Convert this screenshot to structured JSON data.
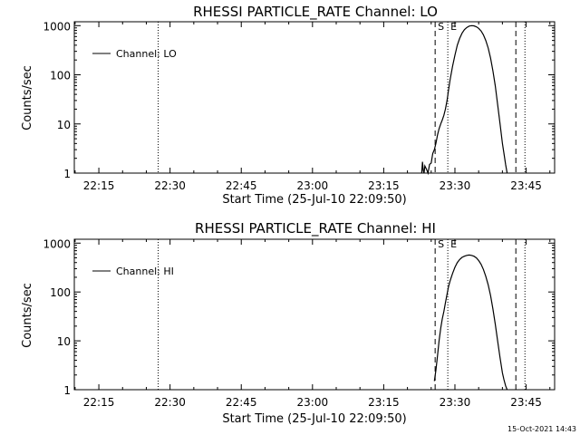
{
  "footer": {
    "timestamp": "15-Oct-2021 14:43"
  },
  "chart_data": [
    {
      "type": "line",
      "title": "RHESSI PARTICLE_RATE Channel: LO",
      "xlabel": "Start Time (25-Jul-10 22:09:50)",
      "ylabel": "Counts/sec",
      "y_scale": "log",
      "ylim": [
        1,
        1200
      ],
      "xlim": [
        "22:09:50",
        "23:51:00"
      ],
      "x_ticks": [
        "22:15",
        "22:30",
        "22:45",
        "23:00",
        "23:15",
        "23:30",
        "23:45"
      ],
      "y_ticks": [
        "1",
        "10",
        "100",
        "1000"
      ],
      "legend": {
        "position": "top-left",
        "entries": [
          "Channel: LO"
        ]
      },
      "markers": [
        {
          "label": "",
          "time": "22:27:30",
          "style": "dotted"
        },
        {
          "label": "S",
          "time": "23:25:50",
          "style": "dashed"
        },
        {
          "label": "E",
          "time": "23:28:30",
          "style": "dotted"
        },
        {
          "label": "",
          "time": "23:42:50",
          "style": "dashed"
        },
        {
          "label": "",
          "time": "23:44:45",
          "style": "dotted"
        }
      ],
      "series": [
        {
          "name": "Channel: LO",
          "x": [
            "23:23:00",
            "23:23:10",
            "23:23:20",
            "23:23:30",
            "23:23:40",
            "23:24:00",
            "23:24:20",
            "23:24:40",
            "23:25:00",
            "23:25:20",
            "23:25:40",
            "23:26:00",
            "23:26:20",
            "23:26:40",
            "23:27:00",
            "23:27:20",
            "23:27:40",
            "23:28:00",
            "23:28:20",
            "23:28:40",
            "23:29:00",
            "23:29:30",
            "23:30:00",
            "23:30:30",
            "23:31:00",
            "23:31:30",
            "23:32:00",
            "23:32:30",
            "23:33:00",
            "23:33:30",
            "23:34:00",
            "23:34:30",
            "23:35:00",
            "23:35:30",
            "23:36:00",
            "23:36:30",
            "23:37:00",
            "23:37:30",
            "23:38:00",
            "23:38:30",
            "23:39:00",
            "23:39:30",
            "23:40:00",
            "23:40:20",
            "23:40:40",
            "23:41:00"
          ],
          "values": [
            1.0,
            1.7,
            1.1,
            1.0,
            1.4,
            1.2,
            1.0,
            1.5,
            1.6,
            2.5,
            3.0,
            4.0,
            6.0,
            8.0,
            10,
            12,
            15,
            20,
            30,
            50,
            80,
            150,
            250,
            400,
            550,
            700,
            830,
            920,
            980,
            1000,
            990,
            950,
            880,
            780,
            650,
            500,
            350,
            220,
            120,
            60,
            25,
            10,
            4.0,
            2.5,
            1.5,
            1.0
          ]
        }
      ]
    },
    {
      "type": "line",
      "title": "RHESSI PARTICLE_RATE Channel: HI",
      "xlabel": "Start Time (25-Jul-10 22:09:50)",
      "ylabel": "Counts/sec",
      "y_scale": "log",
      "ylim": [
        1,
        1200
      ],
      "xlim": [
        "22:09:50",
        "23:51:00"
      ],
      "x_ticks": [
        "22:15",
        "22:30",
        "22:45",
        "23:00",
        "23:15",
        "23:30",
        "23:45"
      ],
      "y_ticks": [
        "1",
        "10",
        "100",
        "1000"
      ],
      "legend": {
        "position": "top-left",
        "entries": [
          "Channel: HI"
        ]
      },
      "markers": [
        {
          "label": "",
          "time": "22:27:30",
          "style": "dotted"
        },
        {
          "label": "S",
          "time": "23:25:50",
          "style": "dashed"
        },
        {
          "label": "E",
          "time": "23:28:30",
          "style": "dotted"
        },
        {
          "label": "",
          "time": "23:42:50",
          "style": "dashed"
        },
        {
          "label": "",
          "time": "23:44:45",
          "style": "dotted"
        }
      ],
      "series": [
        {
          "name": "Channel: HI",
          "x": [
            "23:25:40",
            "23:26:00",
            "23:26:20",
            "23:26:40",
            "23:27:00",
            "23:27:20",
            "23:27:40",
            "23:28:00",
            "23:28:20",
            "23:28:40",
            "23:29:00",
            "23:29:30",
            "23:30:00",
            "23:30:30",
            "23:31:00",
            "23:31:30",
            "23:32:00",
            "23:32:30",
            "23:33:00",
            "23:33:30",
            "23:34:00",
            "23:34:30",
            "23:35:00",
            "23:35:30",
            "23:36:00",
            "23:36:30",
            "23:37:00",
            "23:37:30",
            "23:38:00",
            "23:38:30",
            "23:39:00",
            "23:39:30",
            "23:40:00",
            "23:40:20",
            "23:40:40",
            "23:41:00"
          ],
          "values": [
            1.5,
            2.5,
            5.0,
            10,
            18,
            28,
            40,
            60,
            90,
            130,
            170,
            240,
            320,
            400,
            460,
            510,
            540,
            560,
            570,
            560,
            540,
            500,
            440,
            370,
            290,
            210,
            140,
            85,
            45,
            22,
            10,
            4.5,
            2.2,
            1.6,
            1.2,
            1.0
          ]
        }
      ]
    }
  ]
}
